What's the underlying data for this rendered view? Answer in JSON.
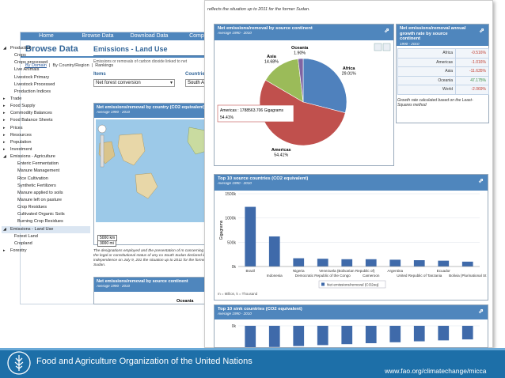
{
  "nav": {
    "items": [
      "Home",
      "Browse Data",
      "Download Data",
      "Compare"
    ]
  },
  "browse": {
    "title": "Browse Data",
    "subnav": {
      "by_domain": "By Domain",
      "sep": "|",
      "by_country": "By Country/Region",
      "rankings": "Rankings"
    }
  },
  "tree": [
    {
      "label": "Production",
      "level": 0,
      "arrow": "◢"
    },
    {
      "label": "Crops",
      "level": 1
    },
    {
      "label": "Crops processed",
      "level": 1
    },
    {
      "label": "Live Animals",
      "level": 1
    },
    {
      "label": "Livestock Primary",
      "level": 1
    },
    {
      "label": "Livestock Processed",
      "level": 1
    },
    {
      "label": "Production Indices",
      "level": 1
    },
    {
      "label": "Trade",
      "level": 0,
      "arrow": "▸"
    },
    {
      "label": "Food Supply",
      "level": 0,
      "arrow": "▸"
    },
    {
      "label": "Commodity Balances",
      "level": 0,
      "arrow": "▸"
    },
    {
      "label": "Food Balance Sheets",
      "level": 0,
      "arrow": "▸"
    },
    {
      "label": "Prices",
      "level": 0,
      "arrow": "▸"
    },
    {
      "label": "Resources",
      "level": 0,
      "arrow": "▸"
    },
    {
      "label": "Population",
      "level": 0,
      "arrow": "▸"
    },
    {
      "label": "Investment",
      "level": 0,
      "arrow": "▸"
    },
    {
      "label": "Emissions - Agriculture",
      "level": 0,
      "arrow": "◢"
    },
    {
      "label": "Enteric Fermentation",
      "level": 2
    },
    {
      "label": "Manure Management",
      "level": 2
    },
    {
      "label": "Rice Cultivation",
      "level": 2
    },
    {
      "label": "Synthetic Fertilizers",
      "level": 2
    },
    {
      "label": "Manure applied to soils",
      "level": 2
    },
    {
      "label": "Manure left on pasture",
      "level": 2
    },
    {
      "label": "Crop Residues",
      "level": 2
    },
    {
      "label": "Cultivated Organic Soils",
      "level": 2
    },
    {
      "label": "Burning Crop Residues",
      "level": 2
    },
    {
      "label": "Emissions - Land Use",
      "level": 0,
      "arrow": "◢",
      "selected": true
    },
    {
      "label": "Forest Land",
      "level": 1
    },
    {
      "label": "Cropland",
      "level": 1
    },
    {
      "label": "Forestry",
      "level": 0,
      "arrow": "▸"
    }
  ],
  "content": {
    "title": "Emissions - Land Use",
    "subtitle": "Emissions or removals of carbon dioxide linked to net",
    "items_label": "Items",
    "items_value": "Net forest conversion",
    "countries_label": "Countries/A",
    "country_value": "South Amer"
  },
  "map_panel": {
    "title": "Net emissions/removal by country (CO2 equivalent)",
    "period": "Average 1990 - 2010",
    "scale_km": "5000 km",
    "scale_mi": "3000 mi"
  },
  "map_note": "The designations employed and the presentation of m concerning the legal or constitutional status of any co South Sudan declared its independence on July 9, 201 the situation up to 2011 for the former Sudan.",
  "bottom_panel": {
    "title": "Net emissions/removal by source continent",
    "period": "Average 1990 - 2010",
    "oceania_label": "Oceania"
  },
  "overlay_note": "reflects the situation up to 2011 for the former Sudan.",
  "pie_panel": {
    "title": "Net emissions/removal by source continent",
    "period": "Average 1990 - 2010",
    "export_icon": "export-icon"
  },
  "rate_panel": {
    "title": "Net emissions/removal annual growth rate by source continent",
    "period": "1990 - 2010",
    "rows": [
      {
        "continent": "Africa",
        "value": "-0.516%"
      },
      {
        "continent": "Americas",
        "value": "-1.016%"
      },
      {
        "continent": "Asia",
        "value": "-11.635%"
      },
      {
        "continent": "Oceania",
        "value": "47.175%"
      },
      {
        "continent": "World",
        "value": "-2.069%"
      }
    ],
    "note": "Growth rate calculated based on the Least-Squares method"
  },
  "top_panel": {
    "title": "Top 10 source countries (CO2 equivalent)",
    "period": "Average 1990 - 2010"
  },
  "sink_panel": {
    "title": "Top 10 sink countries (CO2 equivalent)",
    "period": "Average 1990 - 2010"
  },
  "footer": {
    "title": "Food and Agriculture Organization of the United Nations",
    "url": "www.fao.org/climatechange/micca"
  },
  "colors": {
    "header_blue": "#4f86bd",
    "footer_blue": "#1d6fa8",
    "americas": "#c0504d",
    "africa": "#4f81bd",
    "asia": "#9bbb59",
    "oceania": "#8064a2"
  },
  "chart_data": [
    {
      "type": "pie",
      "title": "Net emissions/removal by source continent",
      "subtitle": "Average 1990 - 2010",
      "slices": [
        {
          "name": "Africa",
          "value": 29.01,
          "label": "29.01%"
        },
        {
          "name": "Americas",
          "value": 54.41,
          "label": "54.41%"
        },
        {
          "name": "Asia",
          "value": 14.68,
          "label": "14.68%"
        },
        {
          "name": "Oceania",
          "value": 1.9,
          "label": "1.90%"
        }
      ],
      "tooltip": "Americas : 1788563.706 Gigagrams",
      "tooltip_value": "54.41%"
    },
    {
      "type": "bar",
      "title": "Top 10 source countries (CO2 equivalent)",
      "subtitle": "Average 1990 - 2010",
      "ylabel": "Gigagrams",
      "yticks": [
        "1500k",
        "1000k",
        "500k",
        "0k"
      ],
      "ytick_values": [
        1500000,
        1000000,
        500000,
        0
      ],
      "ylim": [
        0,
        1500000
      ],
      "categories_top": [
        "Brazil",
        "Nigeria",
        "Venezuela (Bolivarian Republic of)",
        "Argentina",
        "Ecuador"
      ],
      "categories_bottom": [
        "Indonesia",
        "Democratic Republic of the Congo",
        "Cameroon",
        "United Republic of Tanzania",
        "Bolivia (Plurinational St"
      ],
      "values": [
        1230000,
        620000,
        170000,
        160000,
        150000,
        150000,
        140000,
        130000,
        120000,
        100000
      ],
      "legend": "Net emissions/removal (CO2eq)",
      "unit_note": "m = Million, k = Thousand"
    },
    {
      "type": "bar",
      "title": "Top 10 sink countries (CO2 equivalent)",
      "subtitle": "Average 1990 - 2010",
      "yticks": [
        "0k"
      ]
    }
  ]
}
